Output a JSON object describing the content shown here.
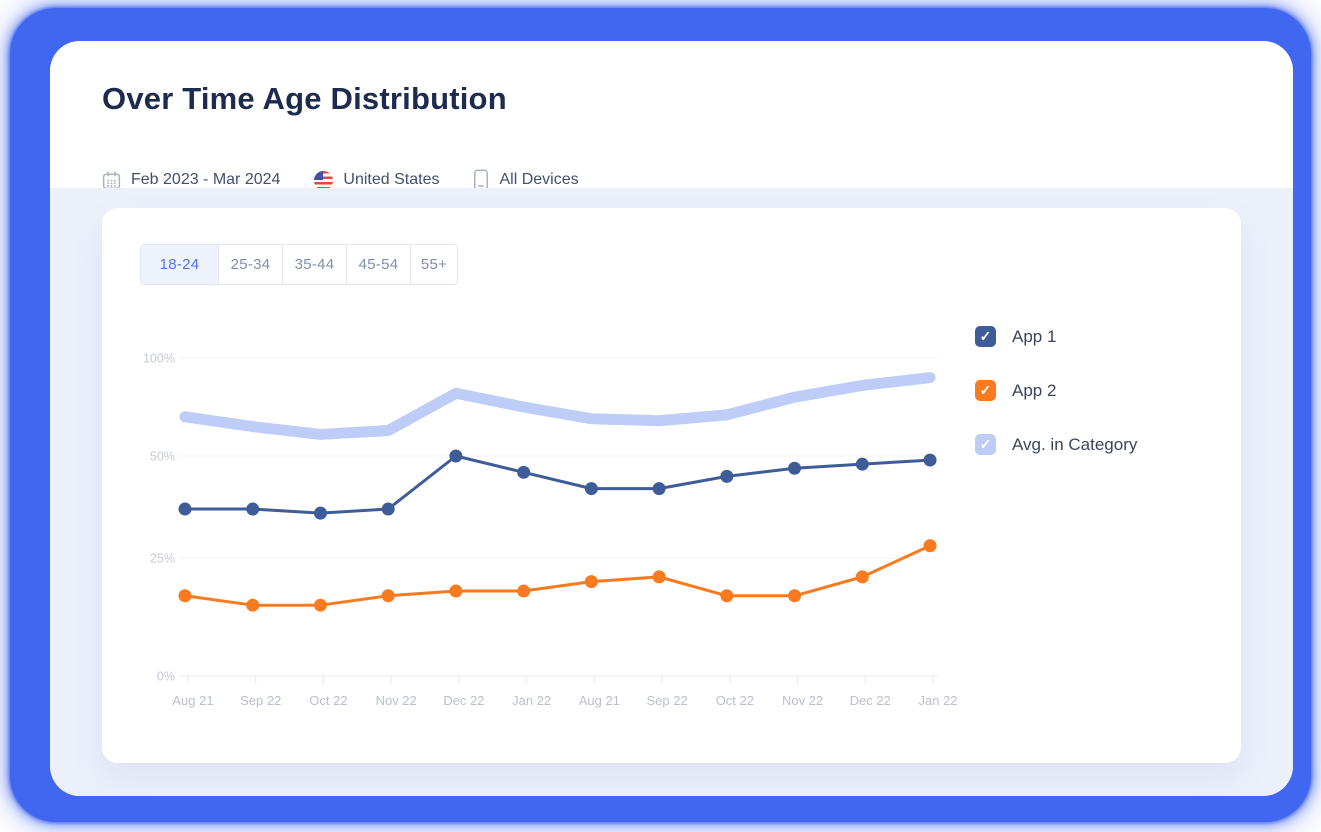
{
  "header": {
    "title": "Over Time Age Distribution",
    "date_range": "Feb 2023 - Mar 2024",
    "country": "United States",
    "devices": "All Devices"
  },
  "tabs": [
    {
      "label": "18-24",
      "selected": true
    },
    {
      "label": "25-34",
      "selected": false
    },
    {
      "label": "35-44",
      "selected": false
    },
    {
      "label": "45-54",
      "selected": false
    },
    {
      "label": "55+",
      "selected": false
    }
  ],
  "legend": [
    {
      "label": "App 1",
      "color": "#3e5c97",
      "checked": true
    },
    {
      "label": "App 2",
      "color": "#f97a1f",
      "checked": true
    },
    {
      "label": "Avg. in Category",
      "color": "#bdcdf8",
      "checked": true
    }
  ],
  "icons": {
    "check": "✓"
  },
  "chart_data": {
    "type": "line",
    "title": "",
    "xlabel": "",
    "ylabel": "",
    "categories": [
      "Aug 21",
      "Sep 22",
      "Oct 22",
      "Nov 22",
      "Dec 22",
      "Jan 22",
      "Aug 21",
      "Sep 22",
      "Oct 22",
      "Nov 22",
      "Dec 22",
      "Jan 22"
    ],
    "series": [
      {
        "name": "App 1",
        "color": "#3e5c97",
        "style": "line",
        "values": [
          37,
          37,
          36,
          37,
          50,
          46,
          42,
          42,
          45,
          47,
          48,
          49
        ]
      },
      {
        "name": "App 2",
        "color": "#f97a1f",
        "style": "line",
        "values": [
          17,
          15,
          15,
          17,
          18,
          18,
          20,
          21,
          17,
          17,
          21,
          28
        ]
      },
      {
        "name": "Avg. in Category",
        "color": "#bdcdf8",
        "style": "band",
        "values": [
          70,
          65,
          61,
          63,
          82,
          75,
          69,
          68,
          71,
          80,
          86,
          90
        ]
      }
    ],
    "y_ticks": [
      {
        "label": "0%",
        "value": 0
      },
      {
        "label": "25%",
        "value": 25
      },
      {
        "label": "50%",
        "value": 50
      },
      {
        "label": "100%",
        "value": 100
      }
    ],
    "ylim": [
      0,
      100
    ],
    "grid": true,
    "legend_position": "right"
  },
  "colors": {
    "frame_blue": "#4166f0",
    "content_band": "#ecf0fa",
    "accent_blue": "#5373f2",
    "title_text": "#1d2b50"
  }
}
